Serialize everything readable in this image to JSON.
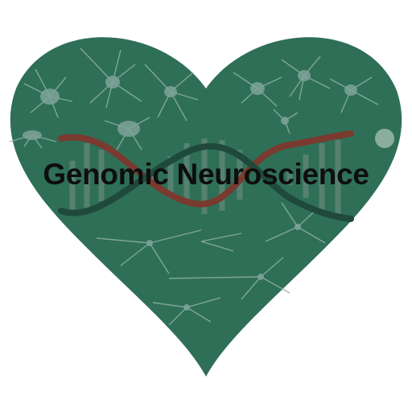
{
  "logo": {
    "title": "Genomic Neuroscience",
    "colors": {
      "heart": "#2f6f57",
      "neuron": "#8fb0a4",
      "strand_red": "#7a3a2f",
      "strand_dark": "#1f4a3b",
      "rung": "#5f8678",
      "background": "#ffffff",
      "text": "#0e0e0e"
    },
    "icons": [
      "heart-shape",
      "dna-helix-icon",
      "neuron-icon"
    ]
  }
}
